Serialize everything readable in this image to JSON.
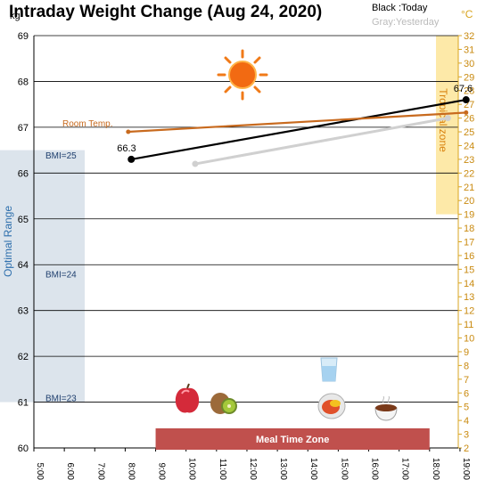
{
  "chart_data": {
    "type": "line",
    "title": "Intraday Weight Change (Aug 24, 2020)",
    "legend": {
      "black": "Black :Today",
      "gray": "Gray:Yesterday"
    },
    "y_left": {
      "unit": "kg",
      "min": 60,
      "max": 69,
      "ticks": [
        "60",
        "61",
        "62",
        "63",
        "64",
        "65",
        "66",
        "67",
        "68",
        "69"
      ]
    },
    "y_right": {
      "unit": "°C",
      "min": 2,
      "max": 32,
      "ticks": [
        "2",
        "3",
        "4",
        "5",
        "6",
        "7",
        "8",
        "9",
        "10",
        "11",
        "12",
        "13",
        "14",
        "15",
        "16",
        "17",
        "18",
        "19",
        "20",
        "21",
        "22",
        "23",
        "24",
        "25",
        "26",
        "27",
        "28",
        "29",
        "30",
        "31",
        "32"
      ]
    },
    "x": {
      "min": 5,
      "max": 19.5,
      "ticks": [
        "5:00",
        "6:00",
        "7:00",
        "8:00",
        "9:00",
        "10:00",
        "11:00",
        "12:00",
        "13:00",
        "14:00",
        "15:00",
        "16:00",
        "17:00",
        "18:00",
        "19:00"
      ],
      "tick_values": [
        5,
        6,
        7,
        8,
        9,
        10,
        11,
        12,
        13,
        14,
        15,
        16,
        17,
        18,
        19
      ]
    },
    "series": [
      {
        "key": "today",
        "color": "#000000",
        "axis": "left",
        "x": [
          8.2,
          19.2
        ],
        "y": [
          66.3,
          67.6
        ],
        "labels": [
          "66.3",
          "67.6"
        ]
      },
      {
        "key": "yesterday",
        "color": "#d0d0d0",
        "axis": "left",
        "x": [
          10.3,
          18.6
        ],
        "y": [
          66.2,
          67.2
        ]
      },
      {
        "key": "room_temp",
        "color": "#c86a1e",
        "axis": "right",
        "name": "Room Temp.",
        "x": [
          8.1,
          19.2
        ],
        "y": [
          25.0,
          26.4
        ]
      }
    ],
    "bands": {
      "optimal": {
        "label": "Optimal Range",
        "y_min": 61.0,
        "y_max": 66.5,
        "color": "#dce4ec"
      },
      "tropical": {
        "label": "Tropical zone",
        "y_min": 19.0,
        "y_max": 32.0,
        "color": "#fde9a8"
      },
      "meal": {
        "label": "Meal Time Zone",
        "x_min": 9.0,
        "x_max": 18.0,
        "color": "#c0504d"
      }
    },
    "bmi_labels": [
      {
        "label": "BMI=25",
        "kg": 66.4
      },
      {
        "label": "BMI=24",
        "kg": 63.8
      },
      {
        "label": "BMI=23",
        "kg": 61.1
      }
    ],
    "icons": {
      "weather": "sun-icon",
      "meals": [
        {
          "name": "apple-icon",
          "x": 10.3
        },
        {
          "name": "kiwi-icon",
          "x": 11.6
        },
        {
          "name": "water-glass-icon",
          "x": 15.4
        },
        {
          "name": "meal-plate-icon",
          "x": 15.5
        },
        {
          "name": "soup-bowl-icon",
          "x": 17.5
        }
      ]
    },
    "grid": "horizontal",
    "colors": {
      "today": "#000000",
      "yesterday": "#d0d0d0",
      "room_temp": "#c86a1e",
      "right_axis": "#d9a520"
    }
  }
}
